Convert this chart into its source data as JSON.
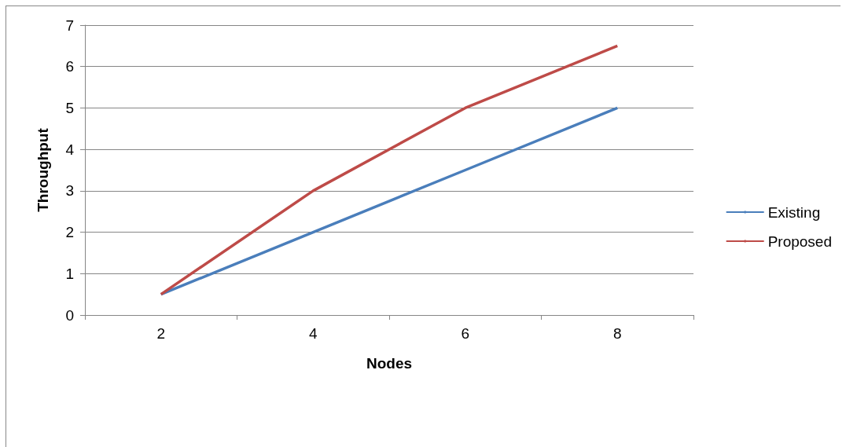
{
  "chart_data": {
    "type": "line",
    "xlabel": "Nodes",
    "ylabel": "Throughput",
    "categories": [
      "2",
      "4",
      "6",
      "8"
    ],
    "series": [
      {
        "name": "Existing",
        "color": "#4a7ebb",
        "values": [
          0.5,
          2,
          3.5,
          5
        ]
      },
      {
        "name": "Proposed",
        "color": "#be4b48",
        "values": [
          0.5,
          3,
          5,
          6.5
        ]
      }
    ],
    "ylim": [
      0,
      7
    ],
    "yticks": [
      0,
      1,
      2,
      3,
      4,
      5,
      6,
      7
    ],
    "grid": "y",
    "legend": "right",
    "marker": "none",
    "line_style": "solid"
  }
}
